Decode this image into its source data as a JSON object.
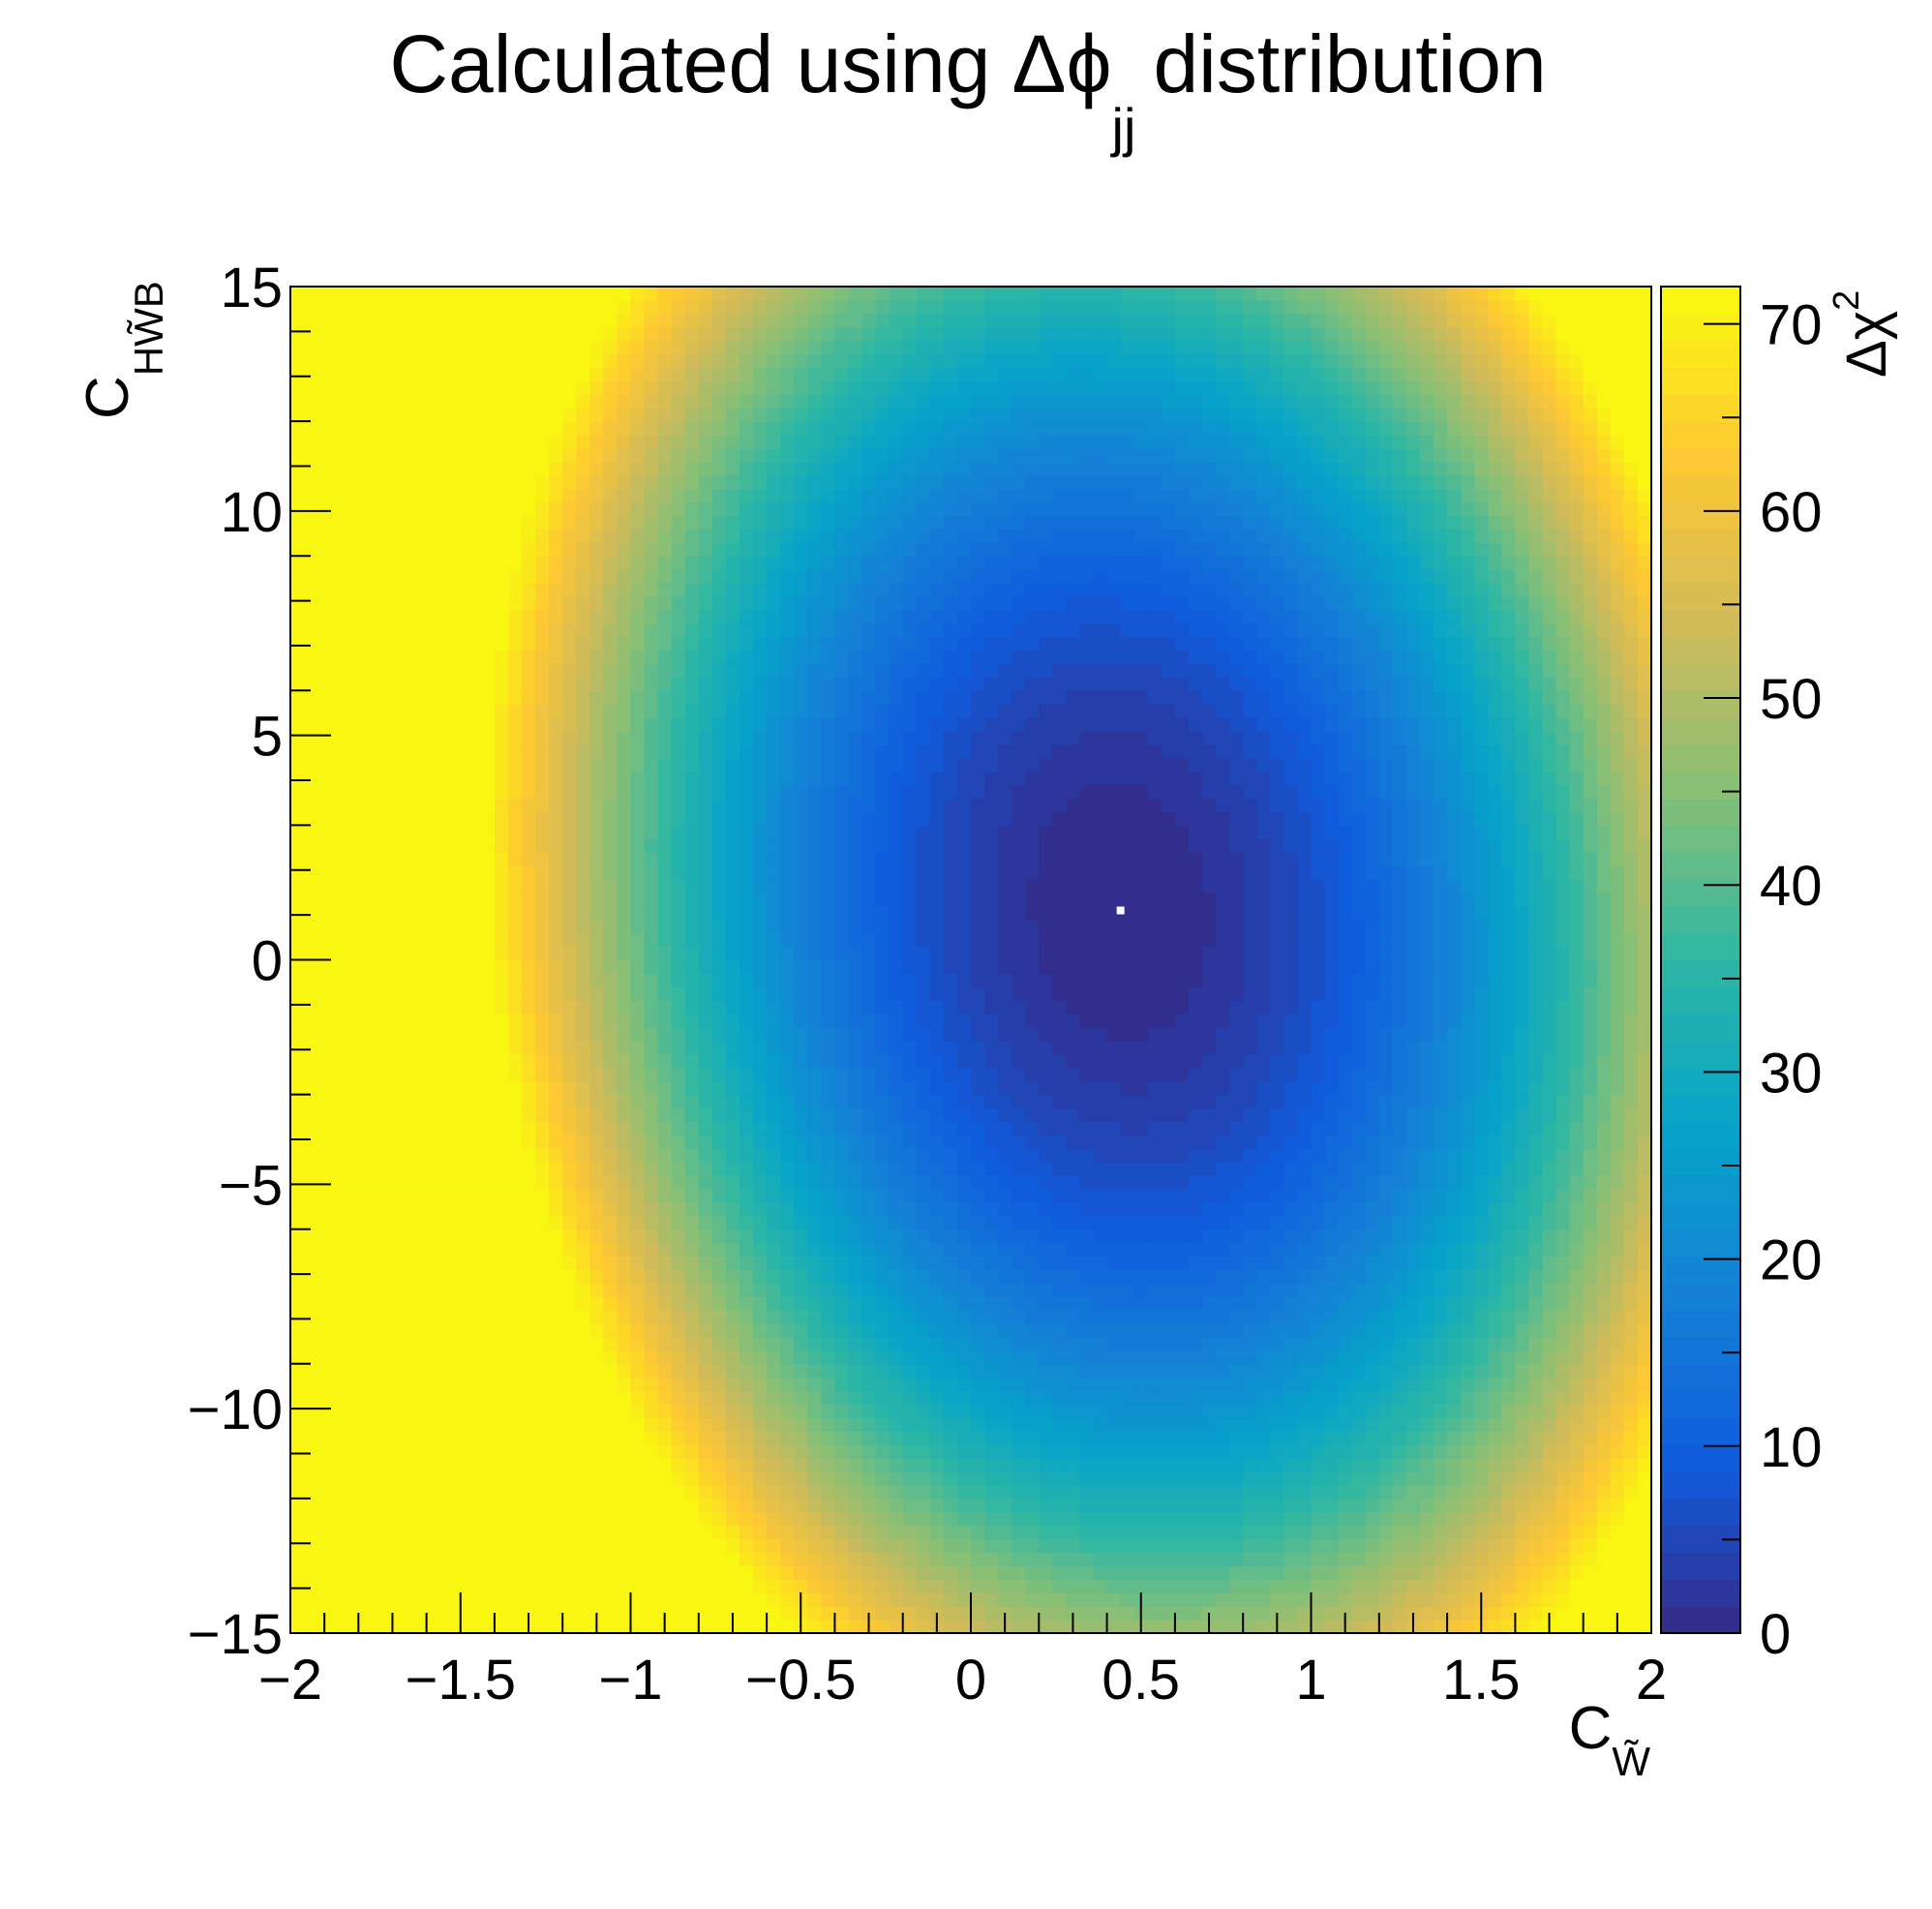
{
  "chart_data": {
    "type": "heatmap",
    "title": {
      "prefix": "Calculated using",
      "symbol": "Δϕ",
      "subscript": "jj",
      "suffix": "distribution"
    },
    "xlabel": {
      "base": "C",
      "sub": "W̃"
    },
    "ylabel": {
      "base": "C",
      "sub": "HW̃B"
    },
    "zlabel": {
      "base": "Δχ",
      "sup": "2"
    },
    "xlim": [
      -2,
      2
    ],
    "ylim": [
      -15,
      15
    ],
    "zlim": [
      0,
      72
    ],
    "x_ticks": [
      {
        "value": -2,
        "label": "−2"
      },
      {
        "value": -1.5,
        "label": "−1.5"
      },
      {
        "value": -1,
        "label": "−1"
      },
      {
        "value": -0.5,
        "label": "−0.5"
      },
      {
        "value": 0,
        "label": "0"
      },
      {
        "value": 0.5,
        "label": "0.5"
      },
      {
        "value": 1,
        "label": "1"
      },
      {
        "value": 1.5,
        "label": "1.5"
      },
      {
        "value": 2,
        "label": "2"
      }
    ],
    "y_ticks": [
      {
        "value": -15,
        "label": "−15"
      },
      {
        "value": -10,
        "label": "−10"
      },
      {
        "value": -5,
        "label": "−5"
      },
      {
        "value": 0,
        "label": "0"
      },
      {
        "value": 5,
        "label": "5"
      },
      {
        "value": 10,
        "label": "10"
      },
      {
        "value": 15,
        "label": "15"
      }
    ],
    "z_ticks": [
      {
        "value": 0,
        "label": "0"
      },
      {
        "value": 10,
        "label": "10"
      },
      {
        "value": 20,
        "label": "20"
      },
      {
        "value": 30,
        "label": "30"
      },
      {
        "value": 40,
        "label": "40"
      },
      {
        "value": 50,
        "label": "50"
      },
      {
        "value": 60,
        "label": "60"
      },
      {
        "value": 70,
        "label": "70"
      }
    ],
    "grid": false,
    "colormap": "kBird",
    "color_levels": 50,
    "surface": {
      "minimum": {
        "x": 0.44,
        "y": 1.1,
        "z": 0
      },
      "quadratic_coefficients": {
        "xx": 20.6,
        "yy": 0.183,
        "xy": 0.37
      }
    },
    "marker": {
      "x": 0.44,
      "y": 1.1,
      "color": "#ffffff"
    }
  }
}
